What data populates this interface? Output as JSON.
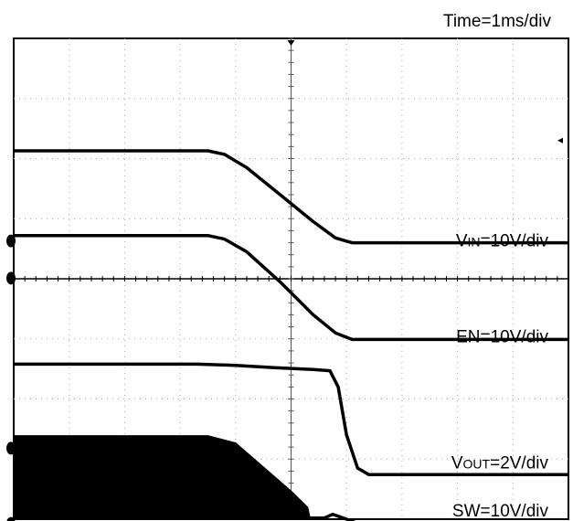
{
  "chart_data": {
    "type": "line",
    "title": "",
    "time_scale_label": "Time=1ms/div",
    "grid": true,
    "grid_divisions": {
      "x": 10,
      "y": 8
    },
    "x_unit": "ms",
    "xlim": [
      0,
      10
    ],
    "series": [
      {
        "name": "VIN=10V/div",
        "label_main": "V",
        "label_sub": "IN",
        "label_tail": "=10V/div",
        "ground_marker": "none",
        "points": [
          [
            0,
            6.13
          ],
          [
            3.5,
            6.13
          ],
          [
            3.8,
            6.07
          ],
          [
            4.2,
            5.85
          ],
          [
            4.8,
            5.4
          ],
          [
            5.4,
            4.95
          ],
          [
            5.8,
            4.68
          ],
          [
            6.1,
            4.6
          ],
          [
            10,
            4.6
          ]
        ]
      },
      {
        "name": "EN=10V/div",
        "label_main": "EN=10V/div",
        "label_sub": "",
        "label_tail": "",
        "ground_marker": "left",
        "points": [
          [
            0,
            4.72
          ],
          [
            3.5,
            4.72
          ],
          [
            3.8,
            4.66
          ],
          [
            4.2,
            4.45
          ],
          [
            4.8,
            3.95
          ],
          [
            5.4,
            3.4
          ],
          [
            5.8,
            3.1
          ],
          [
            6.1,
            2.99
          ],
          [
            10,
            2.99
          ]
        ]
      },
      {
        "name": "VOUT=2V/div",
        "label_main": "V",
        "label_sub": "OUT",
        "label_tail": "=2V/div",
        "ground_marker": "left",
        "points": [
          [
            0,
            2.58
          ],
          [
            3.3,
            2.58
          ],
          [
            4.0,
            2.56
          ],
          [
            4.7,
            2.52
          ],
          [
            5.4,
            2.49
          ],
          [
            5.7,
            2.47
          ],
          [
            5.85,
            2.2
          ],
          [
            6.0,
            1.4
          ],
          [
            6.2,
            0.85
          ],
          [
            6.4,
            0.74
          ],
          [
            10,
            0.74
          ]
        ]
      },
      {
        "name": "SW=10V/div",
        "label_main": "SW=10V/div",
        "label_sub": "",
        "label_tail": "",
        "ground_marker": "left",
        "fill_envelope": [
          [
            0,
            1.39
          ],
          [
            3.5,
            1.39
          ],
          [
            4.0,
            1.27
          ],
          [
            4.5,
            0.87
          ],
          [
            5.0,
            0.47
          ],
          [
            5.3,
            0.2
          ],
          [
            5.35,
            0
          ]
        ],
        "points": [
          [
            5.35,
            0.02
          ],
          [
            5.6,
            0.02
          ],
          [
            5.75,
            0.08
          ],
          [
            6.0,
            0.0
          ],
          [
            6.2,
            -0.07
          ],
          [
            10,
            -0.07
          ]
        ]
      }
    ]
  },
  "colors": {
    "trace": "#000000",
    "grid": "#a6a6a6",
    "background": "#ffffff"
  }
}
